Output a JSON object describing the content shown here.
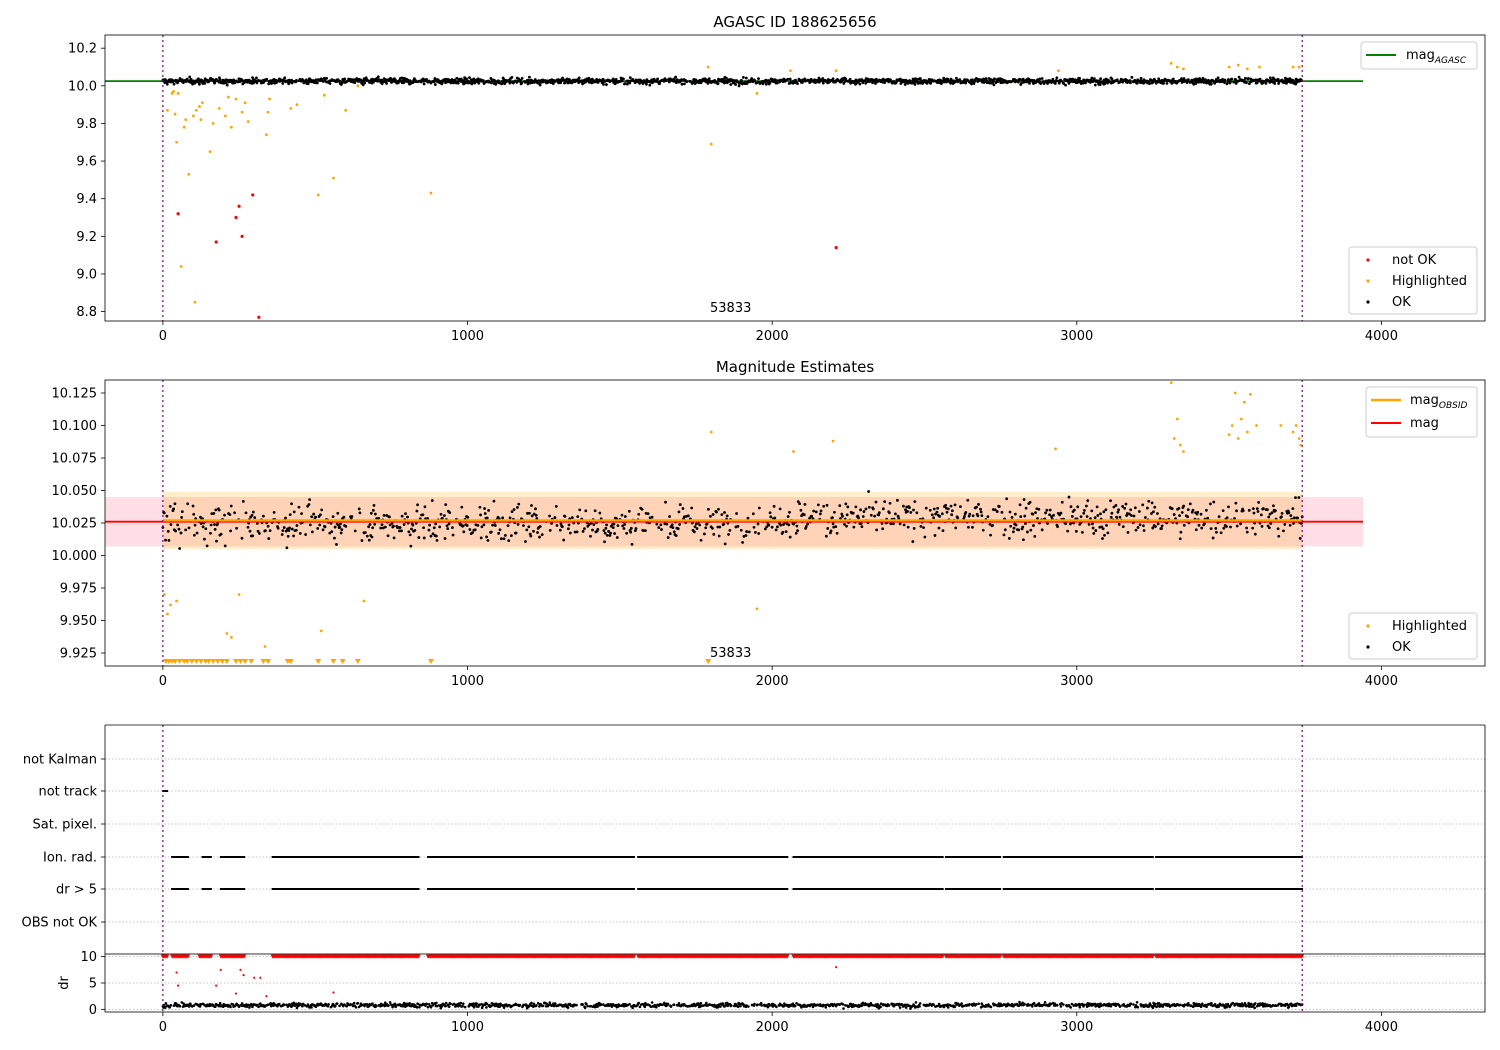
{
  "chart_data": [
    {
      "type": "scatter",
      "title": "AGASC ID 188625656",
      "xlabel": "",
      "ylabel": "",
      "xlim": [
        -190,
        4340
      ],
      "ylim": [
        8.75,
        10.27
      ],
      "xticks": [
        "0",
        "1000",
        "2000",
        "3000",
        "4000"
      ],
      "yticks": [
        "8.8",
        "9.0",
        "9.2",
        "9.4",
        "9.6",
        "9.8",
        "10.0",
        "10.2"
      ],
      "vlines": [
        0,
        3740
      ],
      "annotation": {
        "text": "53833",
        "x": 1790,
        "y": 8.76
      },
      "reference_line": {
        "name": "mag_AGASC",
        "y": 10.025,
        "x": [
          -190,
          3940
        ],
        "color": "#008000"
      },
      "ok_band": {
        "x": [
          0,
          3740
        ],
        "y_center": 10.025,
        "y_spread": 0.03
      },
      "highlighted_points": [
        [
          15,
          9.87
        ],
        [
          30,
          9.96
        ],
        [
          35,
          9.97
        ],
        [
          40,
          9.85
        ],
        [
          45,
          9.7
        ],
        [
          50,
          9.96
        ],
        [
          60,
          9.04
        ],
        [
          70,
          9.78
        ],
        [
          75,
          9.82
        ],
        [
          85,
          9.53
        ],
        [
          100,
          9.84
        ],
        [
          105,
          8.85
        ],
        [
          110,
          9.87
        ],
        [
          120,
          9.89
        ],
        [
          125,
          9.82
        ],
        [
          130,
          9.91
        ],
        [
          155,
          9.65
        ],
        [
          165,
          9.8
        ],
        [
          185,
          9.88
        ],
        [
          205,
          9.84
        ],
        [
          215,
          9.94
        ],
        [
          225,
          9.78
        ],
        [
          240,
          9.93
        ],
        [
          260,
          9.86
        ],
        [
          270,
          9.91
        ],
        [
          280,
          9.81
        ],
        [
          340,
          9.74
        ],
        [
          345,
          9.86
        ],
        [
          350,
          9.93
        ],
        [
          420,
          9.88
        ],
        [
          440,
          9.9
        ],
        [
          510,
          9.42
        ],
        [
          530,
          9.95
        ],
        [
          560,
          9.51
        ],
        [
          600,
          9.87
        ],
        [
          640,
          10.0
        ],
        [
          880,
          9.43
        ],
        [
          1790,
          10.1
        ],
        [
          1800,
          9.69
        ],
        [
          1950,
          9.96
        ],
        [
          2060,
          10.08
        ],
        [
          2210,
          10.08
        ],
        [
          2940,
          10.08
        ],
        [
          3310,
          10.12
        ],
        [
          3330,
          10.1
        ],
        [
          3350,
          10.09
        ],
        [
          3500,
          10.1
        ],
        [
          3530,
          10.11
        ],
        [
          3560,
          10.09
        ],
        [
          3600,
          10.1
        ],
        [
          3710,
          10.1
        ],
        [
          3730,
          10.1
        ]
      ],
      "not_ok_points": [
        [
          50,
          9.32
        ],
        [
          175,
          9.17
        ],
        [
          240,
          9.3
        ],
        [
          250,
          9.36
        ],
        [
          260,
          9.2
        ],
        [
          295,
          9.42
        ],
        [
          315,
          8.77
        ],
        [
          2210,
          9.14
        ]
      ],
      "legend": {
        "placement": "top-right",
        "entries": [
          "mag_AGASC"
        ]
      },
      "legend2": {
        "placement": "lower-right",
        "entries": [
          {
            "label": "not OK",
            "color": "#ff0000"
          },
          {
            "label": "Highlighted",
            "color": "#ffa500"
          },
          {
            "label": "OK",
            "color": "#000000"
          }
        ]
      },
      "legend_texts": {
        "mag_main": "mag",
        "mag_sub": "AGASC"
      }
    },
    {
      "type": "scatter",
      "title": "Magnitude Estimates",
      "xlabel": "",
      "ylabel": "",
      "xlim": [
        -190,
        4340
      ],
      "ylim": [
        9.915,
        10.135
      ],
      "xticks": [
        "0",
        "1000",
        "2000",
        "3000",
        "4000"
      ],
      "yticks": [
        "9.925",
        "9.950",
        "9.975",
        "10.000",
        "10.025",
        "10.050",
        "10.075",
        "10.100",
        "10.125"
      ],
      "vlines": [
        0,
        3740
      ],
      "annotation": {
        "text": "53833",
        "x": 1790,
        "y": 9.922
      },
      "mag_line": {
        "name": "mag",
        "y": 10.026,
        "x": [
          -190,
          3940
        ],
        "color": "#ff0000",
        "band": [
          10.007,
          10.045
        ]
      },
      "mag_obsid_line": {
        "name": "mag_OBSID",
        "y": 10.027,
        "x": [
          0,
          3740
        ],
        "color": "#ffa500",
        "band": [
          10.005,
          10.049
        ]
      },
      "ok_band": {
        "x": [
          0,
          3740
        ],
        "y_center": 10.025,
        "y_spread": 0.02
      },
      "highlighted_points": [
        [
          5,
          9.97
        ],
        [
          15,
          9.955
        ],
        [
          25,
          9.962
        ],
        [
          45,
          9.965
        ],
        [
          250,
          9.97
        ],
        [
          210,
          9.94
        ],
        [
          225,
          9.937
        ],
        [
          335,
          9.93
        ],
        [
          520,
          9.942
        ],
        [
          660,
          9.965
        ],
        [
          1800,
          10.095
        ],
        [
          1950,
          9.959
        ],
        [
          2070,
          10.08
        ],
        [
          2200,
          10.088
        ],
        [
          2930,
          10.082
        ],
        [
          3310,
          10.133
        ],
        [
          3320,
          10.09
        ],
        [
          3330,
          10.105
        ],
        [
          3340,
          10.085
        ],
        [
          3350,
          10.08
        ],
        [
          3500,
          10.093
        ],
        [
          3510,
          10.1
        ],
        [
          3520,
          10.125
        ],
        [
          3530,
          10.09
        ],
        [
          3540,
          10.105
        ],
        [
          3550,
          10.118
        ],
        [
          3560,
          10.095
        ],
        [
          3570,
          10.124
        ],
        [
          3590,
          10.1
        ],
        [
          3670,
          10.1
        ],
        [
          3710,
          10.095
        ],
        [
          3720,
          10.1
        ],
        [
          3730,
          10.09
        ],
        [
          3735,
          10.085
        ]
      ],
      "clipped_points_x": [
        10,
        20,
        30,
        40,
        55,
        70,
        80,
        95,
        110,
        125,
        140,
        150,
        165,
        180,
        195,
        210,
        240,
        255,
        270,
        290,
        330,
        345,
        410,
        420,
        510,
        560,
        590,
        640,
        880,
        1790
      ],
      "legend": {
        "placement": "top-right",
        "entries": [
          "mag_OBSID",
          "mag"
        ]
      },
      "legend2": {
        "placement": "lower-right",
        "entries": [
          {
            "label": "Highlighted",
            "color": "#ffa500"
          },
          {
            "label": "OK",
            "color": "#000000"
          }
        ]
      },
      "legend_texts": {
        "obsid_main": "mag",
        "obsid_sub": "OBSID",
        "mag": "mag"
      }
    },
    {
      "type": "scatter",
      "title": "",
      "xlabel": "",
      "ylabel": "",
      "xlim": [
        -190,
        4340
      ],
      "xticks": [
        "0",
        "1000",
        "2000",
        "3000",
        "4000"
      ],
      "flag_labels": [
        "not Kalman",
        "not track",
        "Sat. pixel.",
        "Ion. rad.",
        "dr > 5",
        "OBS not OK"
      ],
      "flag_segments": {
        "not track": [
          [
            0,
            15
          ]
        ],
        "Ion. rad.": [
          [
            30,
            85
          ],
          [
            130,
            160
          ],
          [
            190,
            270
          ],
          [
            360,
            840
          ],
          [
            870,
            1360
          ],
          [
            1365,
            1550
          ],
          [
            1560,
            2050
          ],
          [
            2070,
            2560
          ],
          [
            2570,
            2750
          ],
          [
            2760,
            3250
          ],
          [
            3260,
            3740
          ]
        ],
        "dr > 5": [
          [
            30,
            85
          ],
          [
            130,
            160
          ],
          [
            190,
            270
          ],
          [
            360,
            840
          ],
          [
            870,
            1360
          ],
          [
            1365,
            1550
          ],
          [
            1560,
            2050
          ],
          [
            2070,
            2560
          ],
          [
            2570,
            2750
          ],
          [
            2760,
            3250
          ],
          [
            3260,
            3740
          ]
        ]
      },
      "vlines": [
        0,
        3740
      ]
    },
    {
      "type": "scatter",
      "title": "",
      "xlabel": "",
      "ylabel": "dr",
      "xlim": [
        -190,
        4340
      ],
      "ylim": [
        -0.5,
        10.5
      ],
      "xticks": [
        "0",
        "1000",
        "2000",
        "3000",
        "4000"
      ],
      "yticks": [
        "0",
        "5",
        "10"
      ],
      "dr_high_segments": [
        [
          0,
          15
        ],
        [
          30,
          85
        ],
        [
          120,
          160
        ],
        [
          190,
          270
        ],
        [
          360,
          840
        ],
        [
          870,
          1360
        ],
        [
          1365,
          1550
        ],
        [
          1560,
          2050
        ],
        [
          2070,
          2560
        ],
        [
          2570,
          2750
        ],
        [
          2760,
          3250
        ],
        [
          3260,
          3740
        ]
      ],
      "dr_high_value": 10,
      "dr_mid_points": [
        [
          45,
          7.0
        ],
        [
          50,
          4.5
        ],
        [
          175,
          4.5
        ],
        [
          190,
          7.5
        ],
        [
          240,
          3.0
        ],
        [
          255,
          7.5
        ],
        [
          265,
          6.5
        ],
        [
          300,
          6.0
        ],
        [
          320,
          6.0
        ],
        [
          340,
          2.5
        ],
        [
          560,
          3.2
        ],
        [
          2210,
          8.0
        ]
      ],
      "dr_low_mean": 0.8,
      "vlines": [
        0,
        3740
      ]
    }
  ]
}
